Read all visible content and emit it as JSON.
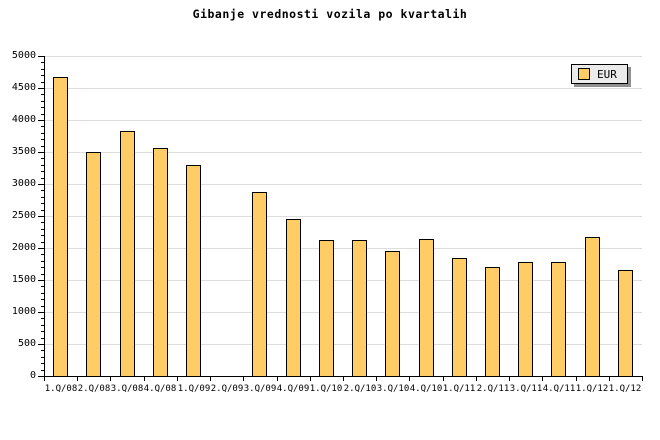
{
  "title": "Gibanje vrednosti vozila po kvartalih",
  "legend": {
    "label": "EUR"
  },
  "colors": {
    "background": "#ffffff",
    "bar_fill": "#FFCC66",
    "bar_border": "#000000",
    "grid": "#DDDDDD",
    "axis": "#000000",
    "text": "#000000",
    "legend_bg": "#EBEBEB",
    "legend_border": "#000000",
    "legend_shadow": "#909090"
  },
  "chart_data": {
    "type": "bar",
    "title": "Gibanje vrednosti vozila po kvartalih",
    "xlabel": "",
    "ylabel": "",
    "categories": [
      "1.Q/08",
      "2.Q/08",
      "3.Q/08",
      "4.Q/08",
      "1.Q/09",
      "2.Q/09",
      "3.Q/09",
      "4.Q/09",
      "1.Q/10",
      "2.Q/10",
      "3.Q/10",
      "4.Q/10",
      "1.Q/11",
      "2.Q/11",
      "3.Q/11",
      "4.Q/11",
      "1.Q/12",
      "1.Q/12"
    ],
    "series": [
      {
        "name": "EUR",
        "values": [
          4670,
          3500,
          3830,
          3570,
          3300,
          null,
          2880,
          2450,
          2130,
          2130,
          1950,
          2140,
          1840,
          1710,
          1780,
          1780,
          2170,
          1660
        ]
      }
    ],
    "ylim": [
      0,
      5000
    ],
    "ytick_step": 500,
    "yminor_step": 100,
    "ytick_labels": [
      "0",
      "500",
      "1000",
      "1500",
      "2000",
      "2500",
      "3000",
      "3500",
      "4000",
      "4500",
      "5000"
    ],
    "grid": "horizontal-major",
    "legend_position": "top-right"
  }
}
